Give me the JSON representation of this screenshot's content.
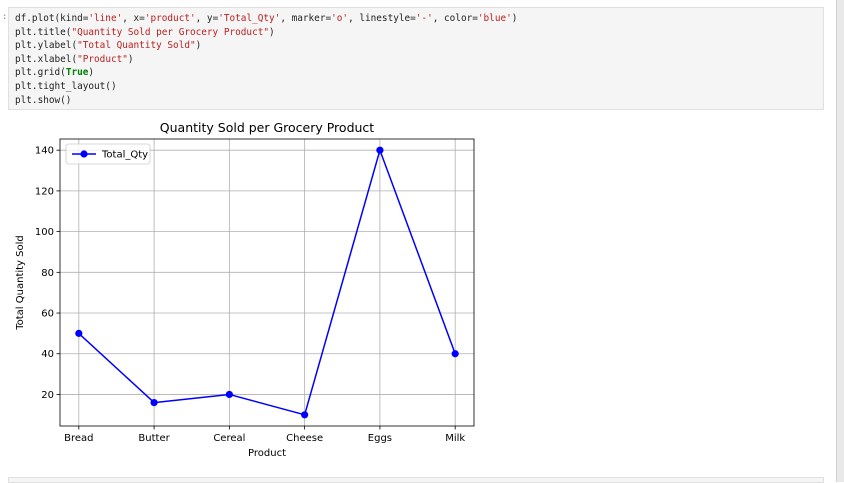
{
  "cell": {
    "prompt": ":",
    "code_lines": [
      [
        {
          "t": "df.plot(kind="
        },
        {
          "t": "'line'",
          "c": "str"
        },
        {
          "t": ", x="
        },
        {
          "t": "'product'",
          "c": "str"
        },
        {
          "t": ", y="
        },
        {
          "t": "'Total_Qty'",
          "c": "str"
        },
        {
          "t": ", marker="
        },
        {
          "t": "'o'",
          "c": "str"
        },
        {
          "t": ", linestyle="
        },
        {
          "t": "'-'",
          "c": "str"
        },
        {
          "t": ", color="
        },
        {
          "t": "'blue'",
          "c": "str"
        },
        {
          "t": ")"
        }
      ],
      [
        {
          "t": "plt.title("
        },
        {
          "t": "\"Quantity Sold per Grocery Product\"",
          "c": "str"
        },
        {
          "t": ")"
        }
      ],
      [
        {
          "t": "plt.ylabel("
        },
        {
          "t": "\"Total Quantity Sold\"",
          "c": "str"
        },
        {
          "t": ")"
        }
      ],
      [
        {
          "t": "plt.xlabel("
        },
        {
          "t": "\"Product\"",
          "c": "str"
        },
        {
          "t": ")"
        }
      ],
      [
        {
          "t": "plt.grid("
        },
        {
          "t": "True",
          "c": "kw"
        },
        {
          "t": ")"
        }
      ],
      [
        {
          "t": "plt.tight_layout()"
        }
      ],
      [
        {
          "t": "plt.show()"
        }
      ]
    ]
  },
  "chart_data": {
    "type": "line",
    "title": "Quantity Sold per Grocery Product",
    "xlabel": "Product",
    "ylabel": "Total Quantity Sold",
    "categories": [
      "Bread",
      "Butter",
      "Cereal",
      "Cheese",
      "Eggs",
      "Milk"
    ],
    "series": [
      {
        "name": "Total_Qty",
        "values": [
          50,
          16,
          20,
          10,
          140,
          40
        ],
        "color": "#0000ff",
        "marker": "o",
        "linestyle": "-"
      }
    ],
    "yticks": [
      20,
      40,
      60,
      80,
      100,
      120,
      140
    ],
    "ylim": [
      4.5,
      145.5
    ],
    "grid": true,
    "legend_position": "upper-left"
  }
}
